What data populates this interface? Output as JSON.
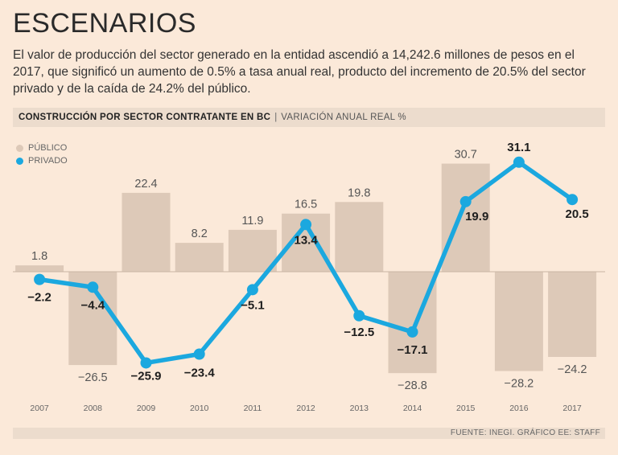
{
  "header": {
    "title": "ESCENARIOS",
    "lede": "El valor de producción del sector generado en la entidad ascendió a 14,242.6 millones de pesos en el 2017, que significó un aumento de 0.5% a tasa anual real, producto del incremento de 20.5% del sector privado y de la caída de 24.2% del público."
  },
  "subhead": {
    "title": "CONSTRUCCIÓN POR SECTOR CONTRATANTE EN BC",
    "separator": "|",
    "subtitle": "VARIACIÓN ANUAL REAL %"
  },
  "colors": {
    "public": "#ddc9b8",
    "private": "#1ba8df"
  },
  "chart_data": {
    "type": "bar",
    "title": "CONSTRUCCIÓN POR SECTOR CONTRATANTE EN BC",
    "ylabel": "VARIACIÓN ANUAL REAL %",
    "ylim": [
      -30,
      32
    ],
    "categories": [
      "2007",
      "2008",
      "2009",
      "2010",
      "2011",
      "2012",
      "2013",
      "2014",
      "2015",
      "2016",
      "2017"
    ],
    "series": [
      {
        "name": "PÚBLICO",
        "kind": "bar",
        "values": [
          1.8,
          -26.5,
          22.4,
          8.2,
          11.9,
          16.5,
          19.8,
          -28.8,
          30.7,
          -28.2,
          -24.2
        ],
        "labels": [
          "1.8",
          "−26.5",
          "22.4",
          "8.2",
          "11.9",
          "16.5",
          "19.8",
          "−28.8",
          "30.7",
          "−28.2",
          "−24.2"
        ]
      },
      {
        "name": "PRIVADO",
        "kind": "line",
        "values": [
          -2.2,
          -4.4,
          -25.9,
          -23.4,
          -5.1,
          13.4,
          -12.5,
          -17.1,
          19.9,
          31.1,
          20.5
        ],
        "labels": [
          "−2.2",
          "−4.4",
          "−25.9",
          "−23.4",
          "−5.1",
          "13.4",
          "−12.5",
          "−17.1",
          "19.9",
          "31.1",
          "20.5"
        ]
      }
    ]
  },
  "source": "FUENTE: INEGI. GRÁFICO EE: STAFF"
}
